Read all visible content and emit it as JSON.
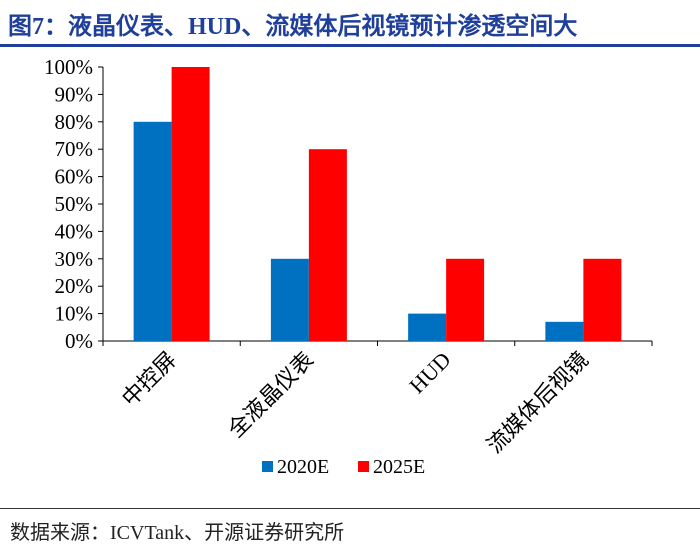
{
  "title": "图7：液晶仪表、HUD、流媒体后视镜预计渗透空间大",
  "source": "数据来源：ICVTank、开源证券研究所",
  "chart_data": {
    "type": "bar",
    "categories": [
      "中控屏",
      "全液晶仪表",
      "HUD",
      "流媒体后视镜"
    ],
    "series": [
      {
        "name": "2020E",
        "color": "#0070c0",
        "values": [
          80,
          30,
          10,
          7
        ]
      },
      {
        "name": "2025E",
        "color": "#ff0000",
        "values": [
          100,
          70,
          30,
          30
        ]
      }
    ],
    "ylim": [
      0,
      100
    ],
    "yticks": [
      "0%",
      "10%",
      "20%",
      "30%",
      "40%",
      "50%",
      "60%",
      "70%",
      "80%",
      "90%",
      "100%"
    ],
    "legend_position": "bottom",
    "grid": false
  }
}
